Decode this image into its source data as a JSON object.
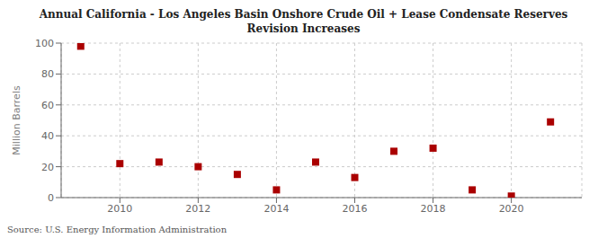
{
  "chart_data": {
    "type": "scatter",
    "title": "Annual California - Los Angeles Basin Onshore Crude Oil + Lease Condensate Reserves\nRevision Increases",
    "ylabel": "Million Barrels",
    "annotation": "Source: U.S. Energy Information Administration",
    "x": [
      2009,
      2010,
      2011,
      2012,
      2013,
      2014,
      2015,
      2016,
      2017,
      2018,
      2019,
      2020,
      2021
    ],
    "values": [
      98,
      22,
      23,
      20,
      15,
      5,
      23,
      13,
      30,
      32,
      5,
      1,
      49
    ],
    "color": "#aa0000",
    "marker": "square",
    "xlim": [
      2008.5,
      2021.8
    ],
    "xticks": [
      2010,
      2012,
      2014,
      2016,
      2018,
      2020
    ],
    "ylim": [
      0,
      100
    ],
    "yticks": [
      0,
      20,
      40,
      60,
      80,
      100
    ],
    "grid": true
  }
}
